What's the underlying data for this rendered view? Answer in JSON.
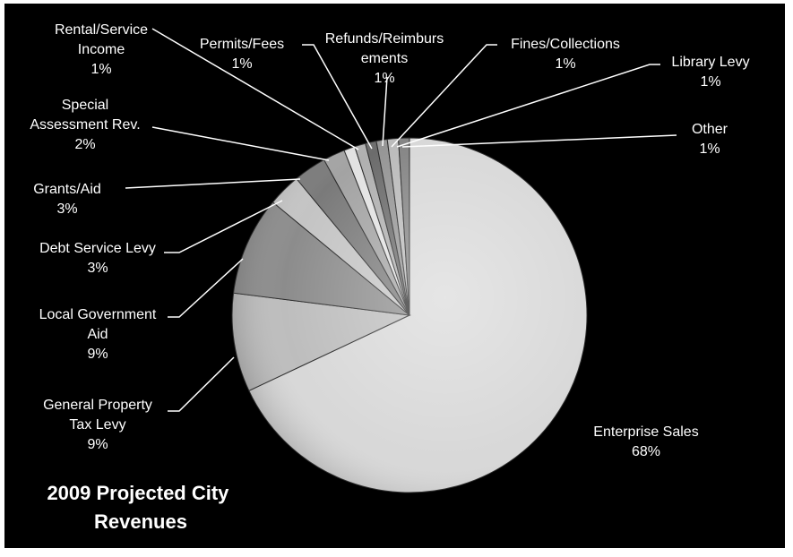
{
  "chart_data": {
    "type": "pie",
    "title_lines": [
      "2009 Projected City",
      "Revenues"
    ],
    "slices": [
      {
        "label_lines": [
          "Enterprise Sales"
        ],
        "pct": "68%",
        "value": 68
      },
      {
        "label_lines": [
          "General Property",
          "Tax Levy"
        ],
        "pct": "9%",
        "value": 9
      },
      {
        "label_lines": [
          "Local Government",
          "Aid"
        ],
        "pct": "9%",
        "value": 9
      },
      {
        "label_lines": [
          "Debt Service Levy"
        ],
        "pct": "3%",
        "value": 3
      },
      {
        "label_lines": [
          "Grants/Aid"
        ],
        "pct": "3%",
        "value": 3
      },
      {
        "label_lines": [
          "Special",
          "Assessment Rev."
        ],
        "pct": "2%",
        "value": 2
      },
      {
        "label_lines": [
          "Rental/Service",
          "Income"
        ],
        "pct": "1%",
        "value": 1
      },
      {
        "label_lines": [
          "Permits/Fees"
        ],
        "pct": "1%",
        "value": 1
      },
      {
        "label_lines": [
          "Refunds/Reimburs",
          "ements"
        ],
        "pct": "1%",
        "value": 1
      },
      {
        "label_lines": [
          "Fines/Collections"
        ],
        "pct": "1%",
        "value": 1
      },
      {
        "label_lines": [
          "Library Levy"
        ],
        "pct": "1%",
        "value": 1
      },
      {
        "label_lines": [
          "Other"
        ],
        "pct": "1%",
        "value": 1
      }
    ],
    "colors": [
      "#d8d8d8",
      "#bdbdbd",
      "#8c8c8c",
      "#c4c4c4",
      "#7a7a7a",
      "#a3a3a3",
      "#e2e2e2",
      "#b0b0b0",
      "#6c6c6c",
      "#969696",
      "#bbbbbb",
      "#858585"
    ],
    "background": "#000000",
    "legend": "none"
  }
}
